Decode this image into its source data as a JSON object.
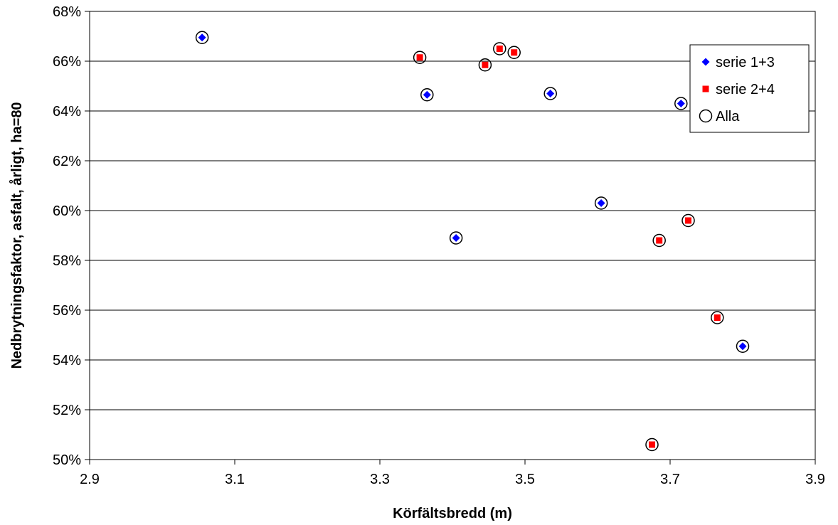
{
  "chart_data": {
    "type": "scatter",
    "title": "",
    "xlabel": "Körfältsbredd (m)",
    "ylabel": "Nedbrytningsfaktor, asfalt, årligt, ha=80",
    "xlim": [
      2.9,
      3.9
    ],
    "ylim": [
      0.5,
      0.68
    ],
    "x_ticks": [
      2.9,
      3.1,
      3.3,
      3.5,
      3.7,
      3.9
    ],
    "x_tick_labels": [
      "2.9",
      "3.1",
      "3.3",
      "3.5",
      "3.7",
      "3.9"
    ],
    "y_ticks": [
      0.5,
      0.52,
      0.54,
      0.56,
      0.58,
      0.6,
      0.62,
      0.64,
      0.66,
      0.68
    ],
    "y_tick_labels": [
      "50%",
      "52%",
      "54%",
      "56%",
      "58%",
      "60%",
      "62%",
      "64%",
      "66%",
      "68%"
    ],
    "grid": "horizontal",
    "legend_position": "top-right",
    "series": [
      {
        "name": "serie 1+3",
        "marker": "diamond",
        "color": "#0000ff",
        "points": [
          {
            "x": 3.055,
            "y": 0.6695
          },
          {
            "x": 3.365,
            "y": 0.6465
          },
          {
            "x": 3.405,
            "y": 0.589
          },
          {
            "x": 3.535,
            "y": 0.647
          },
          {
            "x": 3.605,
            "y": 0.603
          },
          {
            "x": 3.715,
            "y": 0.643
          },
          {
            "x": 3.8,
            "y": 0.5455
          }
        ]
      },
      {
        "name": "serie 2+4",
        "marker": "square",
        "color": "#ff0000",
        "points": [
          {
            "x": 3.355,
            "y": 0.6615
          },
          {
            "x": 3.445,
            "y": 0.6585
          },
          {
            "x": 3.465,
            "y": 0.665
          },
          {
            "x": 3.485,
            "y": 0.6635
          },
          {
            "x": 3.675,
            "y": 0.506
          },
          {
            "x": 3.685,
            "y": 0.588
          },
          {
            "x": 3.725,
            "y": 0.596
          },
          {
            "x": 3.765,
            "y": 0.557
          }
        ]
      },
      {
        "name": "Alla",
        "marker": "circle-open",
        "color": "#000000",
        "points": [
          {
            "x": 3.055,
            "y": 0.6695
          },
          {
            "x": 3.365,
            "y": 0.6465
          },
          {
            "x": 3.405,
            "y": 0.589
          },
          {
            "x": 3.535,
            "y": 0.647
          },
          {
            "x": 3.605,
            "y": 0.603
          },
          {
            "x": 3.715,
            "y": 0.643
          },
          {
            "x": 3.8,
            "y": 0.5455
          },
          {
            "x": 3.355,
            "y": 0.6615
          },
          {
            "x": 3.445,
            "y": 0.6585
          },
          {
            "x": 3.465,
            "y": 0.665
          },
          {
            "x": 3.485,
            "y": 0.6635
          },
          {
            "x": 3.675,
            "y": 0.506
          },
          {
            "x": 3.685,
            "y": 0.588
          },
          {
            "x": 3.725,
            "y": 0.596
          },
          {
            "x": 3.765,
            "y": 0.557
          }
        ]
      }
    ]
  }
}
